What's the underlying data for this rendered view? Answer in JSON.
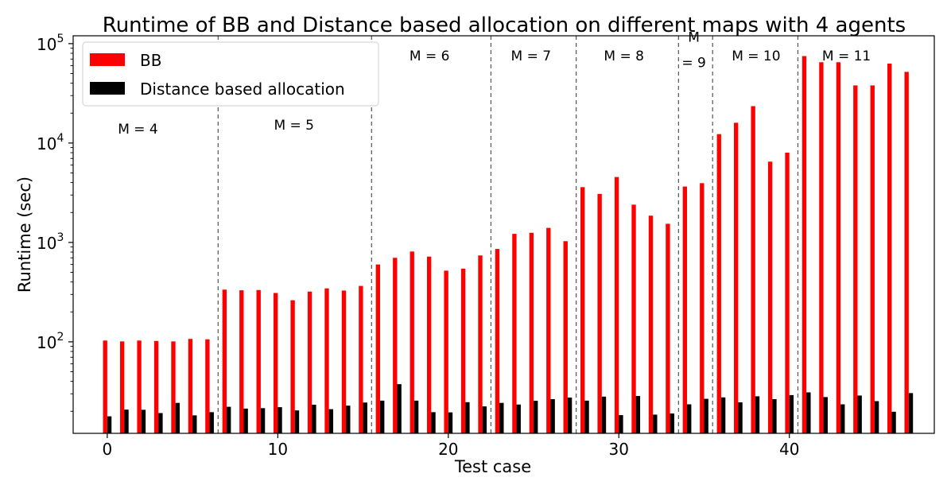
{
  "chart_data": {
    "type": "bar",
    "title": "Runtime of BB and Distance based allocation on different maps with 4 agents",
    "xlabel": "Test case",
    "ylabel": "Runtime (sec)",
    "yscale": "log",
    "ylim": [
      12,
      120000
    ],
    "xlim": [
      -2,
      48.5
    ],
    "xticks": [
      0,
      10,
      20,
      30,
      40
    ],
    "yticks": [
      {
        "value": 100,
        "base": "10",
        "exp": "2"
      },
      {
        "value": 1000,
        "base": "10",
        "exp": "3"
      },
      {
        "value": 10000,
        "base": "10",
        "exp": "4"
      },
      {
        "value": 100000,
        "base": "10",
        "exp": "5"
      }
    ],
    "legend_position": "top-left",
    "grid": false,
    "colors": {
      "BB": "#ff0000",
      "Distance based allocation": "#000000",
      "separator": "#555555"
    },
    "x": [
      0,
      1,
      2,
      3,
      4,
      5,
      6,
      7,
      8,
      9,
      10,
      11,
      12,
      13,
      14,
      15,
      16,
      17,
      18,
      19,
      20,
      21,
      22,
      23,
      24,
      25,
      26,
      27,
      28,
      29,
      30,
      31,
      32,
      33,
      34,
      35,
      36,
      37,
      38,
      39,
      40,
      41,
      42,
      43,
      44,
      45,
      46,
      47
    ],
    "series": [
      {
        "name": "BB",
        "values": [
          103,
          101,
          103,
          102,
          101,
          107,
          106,
          335,
          330,
          332,
          310,
          262,
          320,
          345,
          328,
          365,
          600,
          700,
          810,
          720,
          520,
          545,
          740,
          860,
          1220,
          1250,
          1400,
          1030,
          3600,
          3080,
          4550,
          2400,
          1860,
          1540,
          3650,
          3950,
          12300,
          16000,
          23500,
          6500,
          8000,
          75000,
          65000,
          65000,
          38000,
          38000,
          63000,
          52000
        ]
      },
      {
        "name": "Distance based allocation",
        "values": [
          17.8,
          20.8,
          20.7,
          19.2,
          24.3,
          18.2,
          19.6,
          22.2,
          21.3,
          21.5,
          22.0,
          20.4,
          23.3,
          21.0,
          22.8,
          24.5,
          25.6,
          37.5,
          25.6,
          19.6,
          19.5,
          24.7,
          22.4,
          24.3,
          23.4,
          25.5,
          26.5,
          27.5,
          25.6,
          28.1,
          18.3,
          28.5,
          18.5,
          19.0,
          23.5,
          26.7,
          27.6,
          24.6,
          28.3,
          26.5,
          29.1,
          31.0,
          27.8,
          23.5,
          28.8,
          25.3,
          19.8,
          30.5
        ]
      }
    ],
    "separators": [
      6.5,
      15.5,
      22.5,
      27.5,
      33.5,
      35.5,
      40.5
    ],
    "annotations": [
      {
        "text": "M = 4",
        "x": 1.8,
        "y": 12500
      },
      {
        "text": "M = 5",
        "x": 10.95,
        "y": 13700
      },
      {
        "text": "M = 6",
        "x": 18.9,
        "y": 68000
      },
      {
        "text": "M = 7",
        "x": 24.85,
        "y": 68000
      },
      {
        "text": "M = 8",
        "x": 30.3,
        "y": 68000
      },
      {
        "text": "M",
        "x": 34.4,
        "y": 105000
      },
      {
        "text": "= 9",
        "x": 34.4,
        "y": 58000
      },
      {
        "text": "M = 10",
        "x": 38.05,
        "y": 68000
      },
      {
        "text": "M = 11",
        "x": 43.35,
        "y": 68000
      }
    ]
  }
}
